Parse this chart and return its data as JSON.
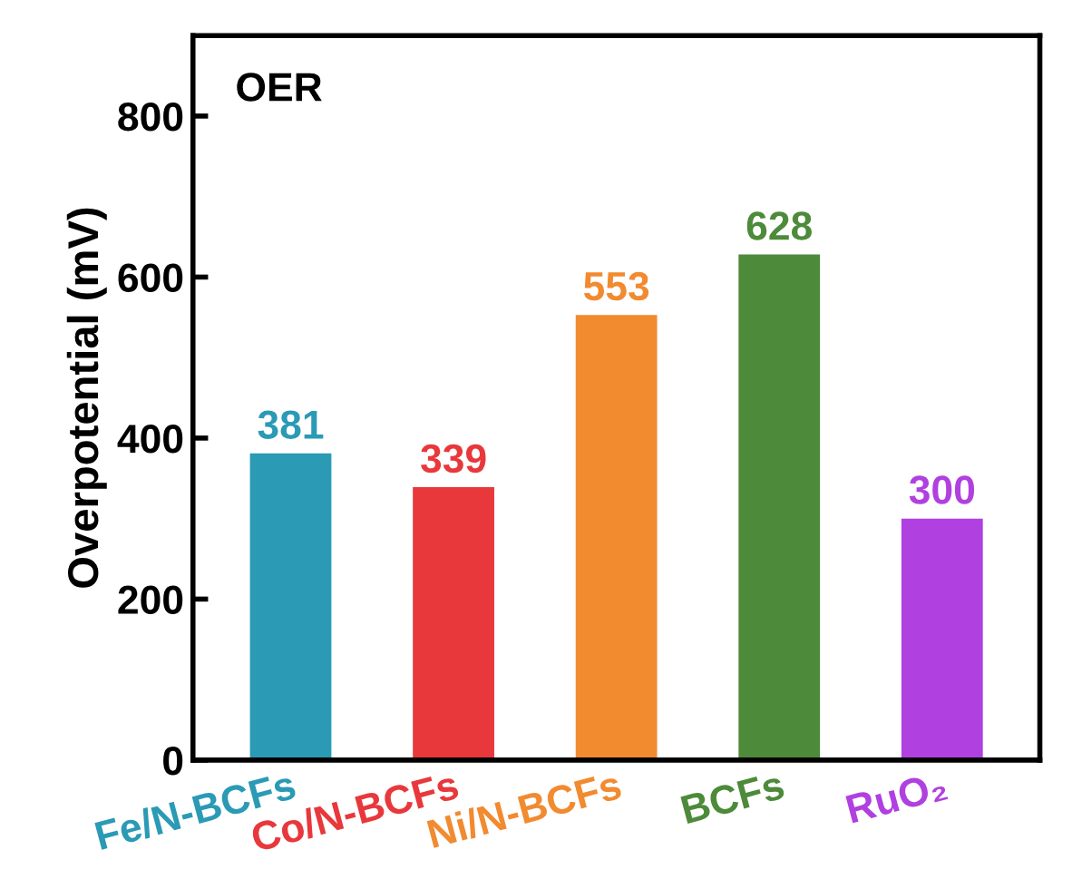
{
  "chart_data": {
    "type": "bar",
    "ylabel": "Overpotential (mV)",
    "annotations": [
      "OER"
    ],
    "categories": [
      "Fe/N-BCFs",
      "Co/N-BCFs",
      "Ni/N-BCFs",
      "BCFs",
      "RuO₂"
    ],
    "values": [
      381,
      339,
      553,
      628,
      300
    ],
    "colors": [
      "#2a9ab5",
      "#e8383c",
      "#f28a30",
      "#4d8a3a",
      "#b040e0"
    ],
    "ylim": [
      0,
      900
    ],
    "yticks": [
      0,
      200,
      400,
      600,
      800
    ],
    "grid": false,
    "legend": false,
    "data_labels": true
  }
}
